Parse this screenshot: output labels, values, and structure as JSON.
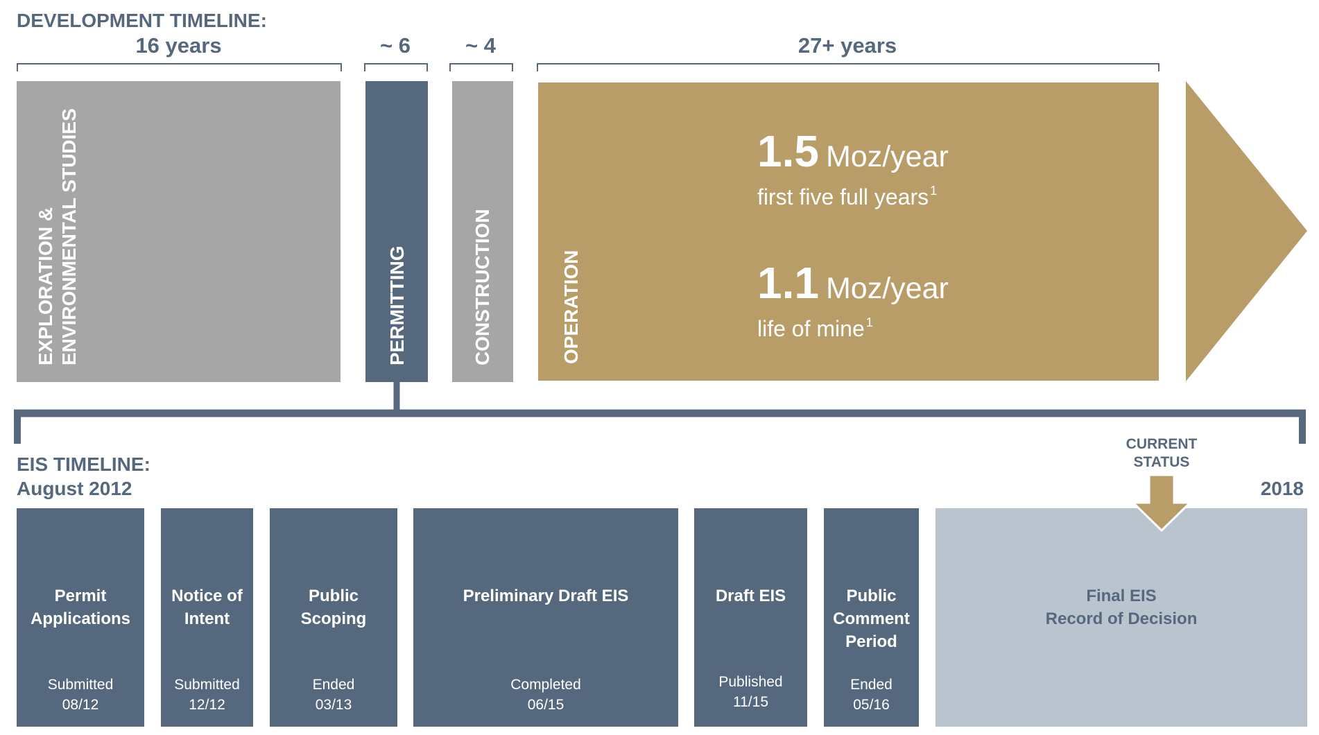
{
  "development": {
    "header": "DEVELOPMENT TIMELINE:",
    "durations": {
      "exploration": "16 years",
      "permitting": "~ 6",
      "construction": "~ 4",
      "operation": "27+ years"
    },
    "phases": {
      "exploration_line1": "EXPLORATION &",
      "exploration_line2": "ENVIRONMENTAL STUDIES",
      "permitting": "PERMITTING",
      "construction": "CONSTRUCTION",
      "operation": "OPERATION"
    },
    "operation_stats": {
      "first_value": "1.5",
      "first_unit": "Moz/year",
      "first_caption": "first five full years",
      "first_footnote": "1",
      "second_value": "1.1",
      "second_unit": "Moz/year",
      "second_caption": "life of mine",
      "second_footnote": "1"
    }
  },
  "eis": {
    "header": "EIS TIMELINE:",
    "start_label": "August 2012",
    "end_label": "2018",
    "current_status_line1": "CURRENT",
    "current_status_line2": "STATUS",
    "steps": [
      {
        "title": "Permit\nApplications",
        "status": "Submitted",
        "date": "08/12"
      },
      {
        "title": "Notice of\nIntent",
        "status": "Submitted",
        "date": "12/12"
      },
      {
        "title": "Public\nScoping",
        "status": "Ended",
        "date": "03/13"
      },
      {
        "title": "Preliminary Draft EIS",
        "status": "Completed",
        "date": "06/15"
      },
      {
        "title": "Draft EIS",
        "status": "Published",
        "date": "11/15"
      },
      {
        "title": "Public\nComment\nPeriod",
        "status": "Ended",
        "date": "05/16"
      },
      {
        "title": "Final EIS\nRecord of Decision",
        "status": "",
        "date": ""
      }
    ]
  },
  "colors": {
    "slate": "#56687e",
    "gray": "#a5a6a5",
    "gold": "#b89d68",
    "light_blue": "#b9c4cf"
  }
}
